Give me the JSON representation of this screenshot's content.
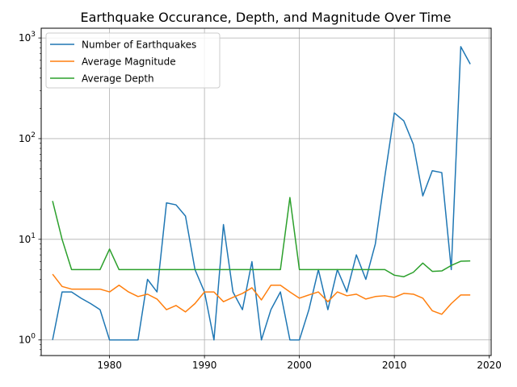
{
  "chart_data": {
    "type": "line",
    "title": "Earthquake Occurance, Depth, and Magnitude Over Time",
    "xlabel": "",
    "ylabel": "",
    "yscale": "log",
    "xlim": [
      1972.8,
      2020.2
    ],
    "ylim": [
      0.7,
      1250
    ],
    "grid": true,
    "legend_position": "top-left",
    "xticks": [
      1980,
      1990,
      2000,
      2010,
      2020
    ],
    "yticks": [
      {
        "value": 1,
        "base": "10",
        "exp": "0"
      },
      {
        "value": 10,
        "base": "10",
        "exp": "1"
      },
      {
        "value": 100,
        "base": "10",
        "exp": "2"
      },
      {
        "value": 1000,
        "base": "10",
        "exp": "3"
      }
    ],
    "x": [
      1974,
      1975,
      1976,
      1977,
      1978,
      1979,
      1980,
      1981,
      1982,
      1983,
      1984,
      1985,
      1986,
      1987,
      1988,
      1989,
      1990,
      1991,
      1992,
      1993,
      1994,
      1995,
      1996,
      1997,
      1998,
      1999,
      2000,
      2001,
      2002,
      2003,
      2004,
      2005,
      2006,
      2007,
      2008,
      2009,
      2010,
      2011,
      2012,
      2013,
      2014,
      2015,
      2016,
      2017,
      2018
    ],
    "series": [
      {
        "name": "Number of Earthquakes",
        "color": "#1f77b4",
        "values": [
          1,
          3,
          3,
          2.6,
          2.3,
          2,
          1,
          1,
          1,
          1,
          4,
          3,
          23,
          22,
          17,
          5,
          3,
          1,
          14,
          3,
          2,
          6,
          1,
          2,
          3,
          1,
          1,
          2,
          5,
          2,
          5,
          3,
          7,
          4,
          9,
          42,
          180,
          150,
          88,
          27,
          48,
          46,
          5,
          820,
          550
        ]
      },
      {
        "name": "Average Magnitude",
        "color": "#ff7f0e",
        "values": [
          4.5,
          3.4,
          3.2,
          3.2,
          3.2,
          3.2,
          3.0,
          3.5,
          3.0,
          2.7,
          2.85,
          2.55,
          2.0,
          2.2,
          1.9,
          2.3,
          3.0,
          3.0,
          2.4,
          2.65,
          2.9,
          3.3,
          2.5,
          3.5,
          3.5,
          3.0,
          2.6,
          2.8,
          3.0,
          2.4,
          3.0,
          2.75,
          2.85,
          2.55,
          2.7,
          2.75,
          2.65,
          2.9,
          2.85,
          2.6,
          1.95,
          1.8,
          2.3,
          2.8,
          2.8
        ]
      },
      {
        "name": "Average Depth",
        "color": "#2ca02c",
        "values": [
          24,
          10,
          5,
          5,
          5,
          5,
          8,
          5,
          5,
          5,
          5,
          5,
          5,
          5,
          5,
          5,
          5,
          5,
          5,
          5,
          5,
          5,
          5,
          5,
          5,
          26,
          5,
          5,
          5,
          5,
          5,
          5,
          5,
          5,
          5,
          5,
          4.4,
          4.25,
          4.7,
          5.8,
          4.8,
          4.85,
          5.5,
          6.05,
          6.1
        ]
      }
    ]
  }
}
